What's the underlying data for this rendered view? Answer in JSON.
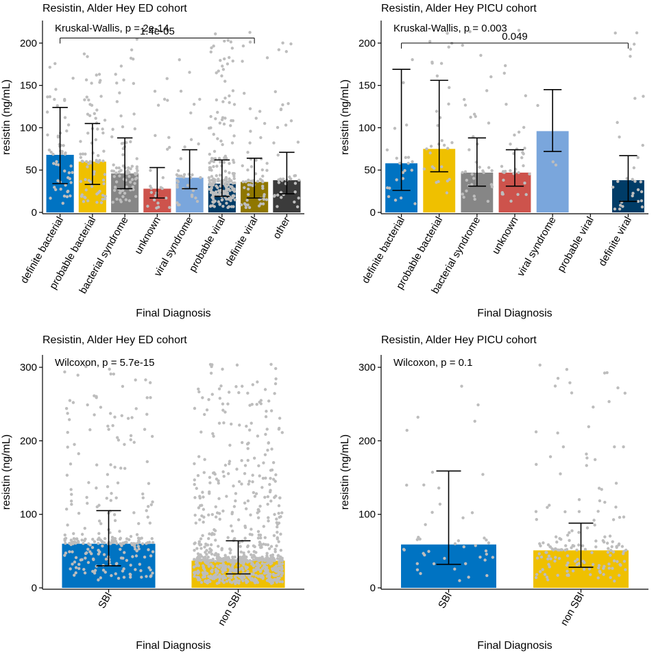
{
  "chart_data": [
    {
      "type": "bar",
      "title": "Resistin, Alder Hey ED cohort",
      "xlabel": "Final Diagnosis",
      "ylabel": "resistin (ng/mL)",
      "ylim": [
        0,
        225
      ],
      "yticks": [
        0,
        50,
        100,
        150,
        200
      ],
      "test_label": "Kruskal-Wallis, p = 2e-14",
      "comparison": {
        "from": "definite bacterial",
        "to": "definite viral",
        "label": "1.4e-05",
        "y": 206
      },
      "categories": [
        "definite bacterial",
        "probable bacterial",
        "bacterial syndrome",
        "unknown",
        "viral syndrome",
        "probable viral",
        "definite viral",
        "other"
      ],
      "values": [
        68,
        60,
        46,
        28,
        41,
        34,
        36,
        38
      ],
      "err_low": [
        34,
        33,
        28,
        17,
        28,
        19,
        17,
        22
      ],
      "err_high": [
        124,
        105,
        88,
        53,
        74,
        62,
        64,
        71
      ],
      "point_counts": [
        55,
        75,
        80,
        25,
        35,
        200,
        60,
        40
      ],
      "colors": [
        "#0073C2",
        "#EFC000",
        "#868686",
        "#CD534C",
        "#7AA6DC",
        "#003C67",
        "#8F7700",
        "#3B3B3B"
      ]
    },
    {
      "type": "bar",
      "title": "Resistin, Alder Hey PICU cohort",
      "xlabel": "Final Diagnosis",
      "ylabel": "resistin (ng/mL)",
      "ylim": [
        0,
        225
      ],
      "yticks": [
        0,
        50,
        100,
        150,
        200
      ],
      "test_label": "Kruskal-Wallis, p = 0.003",
      "comparison": {
        "from": "definite bacterial",
        "to": "definite viral",
        "label": "0.049",
        "y": 200
      },
      "categories": [
        "definite bacterial",
        "probable bacterial",
        "bacterial syndrome",
        "unknown",
        "viral syndrome",
        "probable viral",
        "definite viral"
      ],
      "values": [
        58,
        75,
        47,
        47,
        96,
        null,
        38
      ],
      "err_low": [
        26,
        48,
        31,
        31,
        72,
        null,
        13
      ],
      "err_high": [
        169,
        156,
        88,
        74,
        145,
        null,
        67
      ],
      "point_counts": [
        22,
        30,
        35,
        35,
        3,
        0,
        30
      ],
      "colors": [
        "#0073C2",
        "#EFC000",
        "#868686",
        "#CD534C",
        "#7AA6DC",
        "#003C67",
        "#003C67"
      ]
    },
    {
      "type": "bar",
      "title": "Resistin, Alder Hey ED cohort",
      "xlabel": "Final Diagnosis",
      "ylabel": "resistin (ng/mL)",
      "ylim": [
        0,
        315
      ],
      "yticks": [
        0,
        100,
        200,
        300
      ],
      "test_label": "Wilcoxon, p = 5.7e-15",
      "categories": [
        "SBI",
        "non SBI"
      ],
      "values": [
        60,
        37
      ],
      "err_low": [
        30,
        19
      ],
      "err_high": [
        105,
        64
      ],
      "point_counts": [
        260,
        750
      ],
      "colors": [
        "#0073C2",
        "#EFC000"
      ]
    },
    {
      "type": "bar",
      "title": "Resistin, Alder Hey PICU cohort",
      "xlabel": "Final Diagnosis",
      "ylabel": "resistin (ng/mL)",
      "ylim": [
        0,
        315
      ],
      "yticks": [
        0,
        100,
        200,
        300
      ],
      "test_label": "Wilcoxon, p = 0.1",
      "categories": [
        "SBI",
        "non SBI"
      ],
      "values": [
        59,
        51
      ],
      "err_low": [
        32,
        28
      ],
      "err_high": [
        159,
        88
      ],
      "point_counts": [
        45,
        160
      ],
      "colors": [
        "#0073C2",
        "#EFC000"
      ]
    }
  ]
}
